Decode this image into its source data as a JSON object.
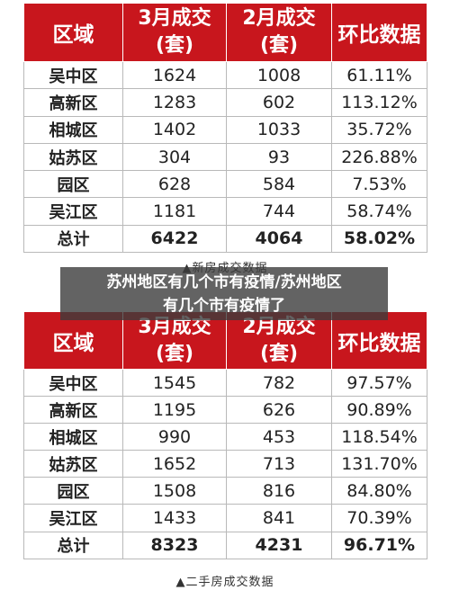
{
  "table1": {
    "headers": [
      "区域",
      "3月成交",
      "(套)",
      "2月成交",
      "(套)",
      "环比数据"
    ],
    "rows": [
      [
        "吴中区",
        "1624",
        "1008",
        "61.11%"
      ],
      [
        "高新区",
        "1283",
        "602",
        "113.12%"
      ],
      [
        "相城区",
        "1402",
        "1033",
        "35.72%"
      ],
      [
        "姑苏区",
        "304",
        "93",
        "226.88%"
      ],
      [
        "园区",
        "628",
        "584",
        "7.53%"
      ],
      [
        "吴江区",
        "1181",
        "744",
        "58.74%"
      ],
      [
        "总计",
        "6422",
        "4064",
        "58.02%"
      ]
    ],
    "caption": "▲新房成交数据"
  },
  "table2": {
    "headers": [
      "区域",
      "3月成交",
      "(套)",
      "2月成交",
      "(套)",
      "环比数据"
    ],
    "rows": [
      [
        "吴中区",
        "1545",
        "782",
        "97.57%"
      ],
      [
        "高新区",
        "1195",
        "626",
        "90.89%"
      ],
      [
        "相城区",
        "990",
        "453",
        "118.54%"
      ],
      [
        "姑苏区",
        "1652",
        "713",
        "131.70%"
      ],
      [
        "园区",
        "1508",
        "816",
        "84.80%"
      ],
      [
        "吴江区",
        "1433",
        "841",
        "70.39%"
      ],
      [
        "总计",
        "8323",
        "4231",
        "96.71%"
      ]
    ],
    "caption": "▲二手房成交数据"
  },
  "overlay": {
    "line1": "苏州地区有几个市有疫情/苏州地区",
    "line2": "有几个市有疫情了"
  },
  "colors": {
    "header_bg": "#c8161d",
    "header_text": "#ffffff",
    "border": "#b9b9b9"
  }
}
